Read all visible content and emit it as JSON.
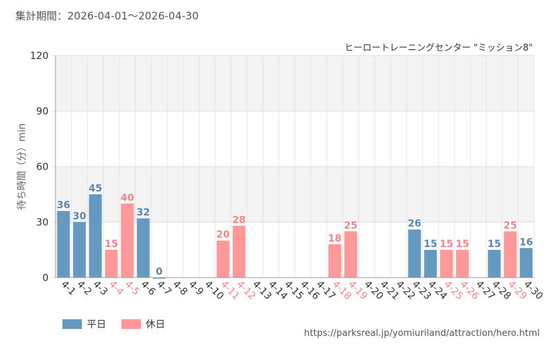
{
  "period": {
    "label": "集計期間：",
    "range": "2026-04-01〜2026-04-30"
  },
  "footer": {
    "source": "https://parksreal.jp/yomiuriland/attraction/hero.html"
  },
  "colors": {
    "weekday": "#6699c0",
    "holiday": "#ff9999",
    "weekday_text": "#5a86b0",
    "holiday_text": "#ee8888"
  },
  "chart_data": {
    "type": "bar",
    "title": "ヒーロートレーニングセンター \"ミッション8\"",
    "ylabel": "待ち時間（分）min",
    "xlabel": "",
    "ylim": [
      0,
      120
    ],
    "yticks": [
      0,
      30,
      60,
      90,
      120
    ],
    "grid": true,
    "legend_position": "bottom-left",
    "legend": [
      {
        "key": "weekday",
        "label": "平日"
      },
      {
        "key": "holiday",
        "label": "休日"
      }
    ],
    "categories": [
      "4-1",
      "4-2",
      "4-3",
      "4-4",
      "4-5",
      "4-6",
      "4-7",
      "4-8",
      "4-9",
      "4-10",
      "4-11",
      "4-12",
      "4-13",
      "4-14",
      "4-15",
      "4-16",
      "4-17",
      "4-18",
      "4-19",
      "4-20",
      "4-21",
      "4-22",
      "4-23",
      "4-24",
      "4-25",
      "4-26",
      "4-27",
      "4-28",
      "4-29",
      "4-30"
    ],
    "values": [
      36,
      30,
      45,
      15,
      40,
      32,
      0,
      null,
      null,
      null,
      20,
      28,
      null,
      null,
      null,
      null,
      null,
      18,
      25,
      null,
      null,
      null,
      26,
      15,
      15,
      15,
      null,
      15,
      25,
      16
    ],
    "day_type": [
      "weekday",
      "weekday",
      "weekday",
      "holiday",
      "holiday",
      "weekday",
      "weekday",
      "weekday",
      "weekday",
      "weekday",
      "holiday",
      "holiday",
      "weekday",
      "weekday",
      "weekday",
      "weekday",
      "weekday",
      "holiday",
      "holiday",
      "weekday",
      "weekday",
      "weekday",
      "weekday",
      "weekday",
      "holiday",
      "holiday",
      "weekday",
      "weekday",
      "holiday",
      "weekday"
    ]
  }
}
